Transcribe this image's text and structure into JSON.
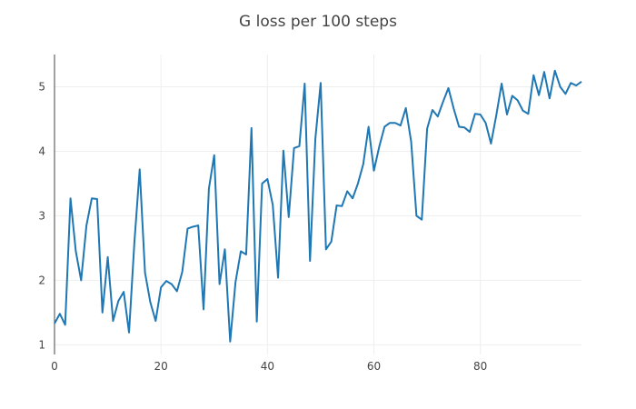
{
  "chart_data": {
    "type": "line",
    "title": "G loss per 100 steps",
    "xlabel": "",
    "ylabel": "",
    "xlim": [
      0,
      99
    ],
    "ylim": [
      0.85,
      5.5
    ],
    "x_ticks": [
      0,
      20,
      40,
      60,
      80
    ],
    "y_ticks": [
      1,
      2,
      3,
      4,
      5
    ],
    "grid": true,
    "line_color": "#1f77b4",
    "grid_color": "#eeeeee",
    "series": [
      {
        "values": [
          1.33,
          1.48,
          1.31,
          3.27,
          2.45,
          2.0,
          2.85,
          3.27,
          3.26,
          1.5,
          2.36,
          1.37,
          1.68,
          1.82,
          1.19,
          2.58,
          3.72,
          2.12,
          1.66,
          1.37,
          1.89,
          1.99,
          1.94,
          1.83,
          2.13,
          2.8,
          2.83,
          2.85,
          1.55,
          3.42,
          3.94,
          1.94,
          2.48,
          1.05,
          1.97,
          2.45,
          2.4,
          4.36,
          1.36,
          3.5,
          3.57,
          3.17,
          2.04,
          4.01,
          2.98,
          4.05,
          4.08,
          5.05,
          2.3,
          4.19,
          5.06,
          2.48,
          2.6,
          3.16,
          3.15,
          3.38,
          3.27,
          3.5,
          3.8,
          4.38,
          3.7,
          4.07,
          4.38,
          4.44,
          4.44,
          4.4,
          4.67,
          4.15,
          3.0,
          2.94,
          4.35,
          4.64,
          4.54,
          4.77,
          4.98,
          4.66,
          4.38,
          4.37,
          4.3,
          4.58,
          4.57,
          4.44,
          4.12,
          4.56,
          5.05,
          4.57,
          4.86,
          4.79,
          4.63,
          4.58,
          5.18,
          4.87,
          5.23,
          4.82,
          5.25,
          5.0,
          4.89,
          5.06,
          5.02,
          5.08
        ]
      }
    ]
  }
}
